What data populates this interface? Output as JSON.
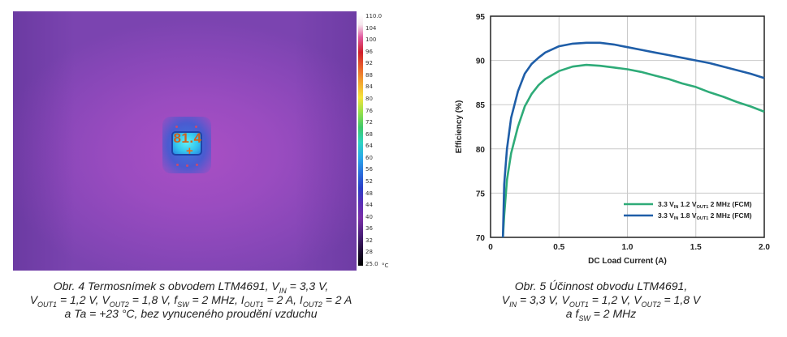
{
  "thermal": {
    "spot_value": "81.4",
    "crosshair": "+",
    "scale_labels": [
      "110.0",
      "104",
      "100",
      "96",
      "92",
      "88",
      "84",
      "80",
      "76",
      "72",
      "68",
      "64",
      "60",
      "56",
      "52",
      "48",
      "44",
      "40",
      "36",
      "32",
      "28",
      "25.0"
    ],
    "unit": "°C"
  },
  "figure4_caption": {
    "line1_pre": "Obr. 4  Termosnímek s obvodem LTM4691, V",
    "line1_sub": "IN",
    "line1_post": " = 3,3 V,",
    "line2_a": "V",
    "line2_a_sub": "OUT1",
    "line2_b": " = 1,2 V, V",
    "line2_b_sub": "OUT2",
    "line2_c": " = 1,8 V, f",
    "line2_c_sub": "SW",
    "line2_d": " = 2 MHz, I",
    "line2_d_sub": "OUT1",
    "line2_e": " = 2 A, I",
    "line2_e_sub": "OUT2",
    "line2_f": " = 2 A",
    "line3": "a Ta = +23 °C, bez vynuceného proudění vzduchu"
  },
  "figure5_caption": {
    "line1": "Obr. 5  Účinnost obvodu LTM4691,",
    "line2_a": "V",
    "line2_a_sub": "IN",
    "line2_b": " = 3,3 V, V",
    "line2_b_sub": "OUT1",
    "line2_c": " = 1,2 V, V",
    "line2_c_sub": "OUT2",
    "line2_d": " = 1,8 V",
    "line3_a": "a f",
    "line3_sub": "SW",
    "line3_b": " = 2 MHz"
  },
  "chart_data": {
    "type": "line",
    "xlabel": "DC Load Current (A)",
    "ylabel": "Efficiency (%)",
    "xlim": [
      0,
      2.0
    ],
    "ylim": [
      70,
      95
    ],
    "xticks": [
      "0",
      "0.5",
      "1.0",
      "1.5",
      "2.0"
    ],
    "yticks": [
      "70",
      "75",
      "80",
      "85",
      "90",
      "95"
    ],
    "grid": true,
    "legend_position": "bottom-right",
    "series": [
      {
        "name_parts": [
          "3.3 V",
          "IN",
          " 1.2 V",
          "OUT1",
          " 2 MHz (FCM)"
        ],
        "color": "#2eab78",
        "x": [
          0.09,
          0.1,
          0.12,
          0.15,
          0.2,
          0.25,
          0.3,
          0.35,
          0.4,
          0.5,
          0.6,
          0.7,
          0.8,
          0.9,
          1.0,
          1.1,
          1.2,
          1.3,
          1.4,
          1.5,
          1.6,
          1.7,
          1.8,
          1.9,
          2.0
        ],
        "y": [
          70.0,
          72.5,
          76.5,
          79.5,
          82.5,
          84.8,
          86.2,
          87.2,
          87.9,
          88.8,
          89.3,
          89.5,
          89.4,
          89.2,
          89.0,
          88.7,
          88.3,
          87.9,
          87.4,
          87.0,
          86.4,
          85.9,
          85.3,
          84.8,
          84.2
        ]
      },
      {
        "name_parts": [
          "3.3 V",
          "IN",
          " 1.8 V",
          "OUT1",
          " 2 MHz (FCM)"
        ],
        "color": "#1f5ea8",
        "x": [
          0.09,
          0.1,
          0.12,
          0.15,
          0.2,
          0.25,
          0.3,
          0.35,
          0.4,
          0.5,
          0.6,
          0.7,
          0.8,
          0.9,
          1.0,
          1.1,
          1.2,
          1.3,
          1.4,
          1.5,
          1.6,
          1.7,
          1.8,
          1.9,
          2.0
        ],
        "y": [
          70.0,
          76.0,
          80.0,
          83.5,
          86.5,
          88.5,
          89.6,
          90.3,
          90.9,
          91.6,
          91.9,
          92.0,
          92.0,
          91.8,
          91.5,
          91.2,
          90.9,
          90.6,
          90.3,
          90.0,
          89.7,
          89.3,
          88.9,
          88.5,
          88.0
        ]
      }
    ]
  }
}
